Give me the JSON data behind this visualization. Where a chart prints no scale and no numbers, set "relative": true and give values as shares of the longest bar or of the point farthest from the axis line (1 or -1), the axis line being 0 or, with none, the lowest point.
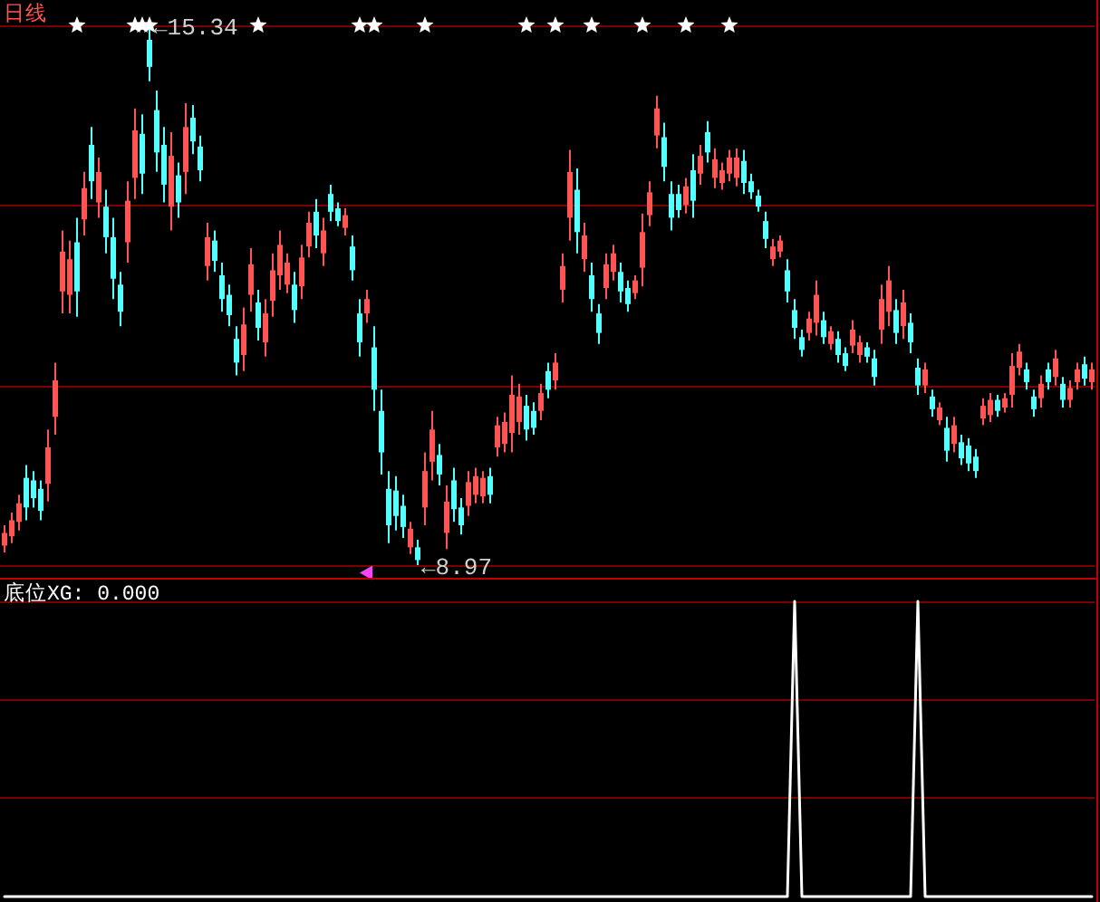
{
  "chart_data": [
    {
      "type": "candlestick",
      "title": "日线",
      "categories": [
        null,
        null,
        null,
        null,
        null,
        null,
        null,
        null,
        null,
        null,
        null,
        null,
        null,
        null,
        null,
        null,
        null,
        null,
        null,
        null,
        null,
        null,
        null,
        null,
        null,
        null,
        null,
        null,
        null,
        null,
        null,
        null,
        null,
        null,
        null,
        null,
        null,
        null,
        null,
        null,
        null,
        null,
        null,
        null,
        null,
        null,
        null,
        null,
        null,
        null,
        null,
        null,
        null,
        null,
        null,
        null,
        null,
        null,
        null,
        null,
        null,
        null,
        null,
        null,
        null,
        null,
        null,
        null,
        null,
        null,
        null,
        null,
        null,
        null,
        null,
        null,
        null,
        null,
        null,
        null,
        null,
        null,
        null,
        null,
        null,
        null,
        null,
        null,
        null,
        null,
        null,
        null,
        null,
        null,
        null,
        null,
        null,
        null,
        null,
        null,
        null,
        null,
        null,
        null,
        null,
        null,
        null,
        null,
        null,
        null,
        null,
        null,
        null,
        null,
        null,
        null,
        null,
        null,
        null,
        null,
        null,
        null,
        null,
        null,
        null,
        null,
        null,
        null,
        null,
        null,
        null,
        null,
        null,
        null,
        null,
        null,
        null,
        null,
        null,
        null,
        null,
        null,
        null,
        null,
        null,
        null,
        null,
        null,
        null,
        null,
        null
      ],
      "ohlc": [
        [
          9.2,
          9.44,
          9.12,
          9.35
        ],
        [
          9.31,
          9.59,
          9.23,
          9.5
        ],
        [
          9.48,
          9.8,
          9.38,
          9.7
        ],
        [
          10.0,
          10.15,
          9.5,
          9.65
        ],
        [
          9.97,
          10.08,
          9.65,
          9.76
        ],
        [
          9.87,
          9.97,
          9.5,
          9.61
        ],
        [
          9.93,
          10.57,
          9.72,
          10.36
        ],
        [
          10.72,
          11.36,
          10.51,
          11.15
        ],
        [
          12.2,
          12.92,
          11.94,
          12.67
        ],
        [
          12.16,
          12.8,
          11.94,
          12.58
        ],
        [
          12.78,
          13.07,
          11.9,
          12.2
        ],
        [
          13.05,
          13.61,
          12.86,
          13.42
        ],
        [
          13.93,
          14.14,
          13.29,
          13.5
        ],
        [
          13.25,
          13.78,
          13.07,
          13.61
        ],
        [
          13.2,
          13.4,
          12.65,
          12.84
        ],
        [
          12.84,
          13.07,
          12.11,
          12.35
        ],
        [
          12.28,
          12.43,
          11.79,
          11.96
        ],
        [
          12.78,
          13.5,
          12.54,
          13.27
        ],
        [
          13.54,
          14.36,
          13.29,
          14.1
        ],
        [
          14.06,
          14.29,
          13.35,
          13.59
        ],
        [
          15.17,
          15.34,
          14.68,
          14.85
        ],
        [
          14.34,
          14.57,
          13.61,
          13.84
        ],
        [
          13.93,
          14.14,
          13.25,
          13.46
        ],
        [
          13.2,
          14.08,
          12.92,
          13.8
        ],
        [
          13.57,
          13.72,
          13.07,
          13.25
        ],
        [
          13.61,
          14.42,
          13.35,
          14.14
        ],
        [
          14.25,
          14.4,
          13.82,
          13.97
        ],
        [
          13.91,
          14.04,
          13.5,
          13.63
        ],
        [
          12.5,
          13.01,
          12.33,
          12.84
        ],
        [
          12.8,
          12.92,
          12.43,
          12.56
        ],
        [
          12.39,
          12.54,
          11.96,
          12.11
        ],
        [
          12.16,
          12.28,
          11.79,
          11.92
        ],
        [
          11.64,
          11.79,
          11.21,
          11.36
        ],
        [
          11.45,
          12.01,
          11.26,
          11.81
        ],
        [
          12.16,
          12.71,
          11.96,
          12.52
        ],
        [
          12.07,
          12.22,
          11.62,
          11.77
        ],
        [
          11.6,
          12.11,
          11.43,
          11.94
        ],
        [
          12.09,
          12.65,
          11.9,
          12.45
        ],
        [
          12.39,
          12.92,
          12.22,
          12.75
        ],
        [
          12.28,
          12.65,
          12.18,
          12.54
        ],
        [
          12.28,
          12.43,
          11.83,
          11.98
        ],
        [
          12.26,
          12.75,
          12.11,
          12.6
        ],
        [
          12.73,
          13.14,
          12.6,
          13.01
        ],
        [
          13.14,
          13.29,
          12.71,
          12.86
        ],
        [
          12.65,
          13.07,
          12.5,
          12.92
        ],
        [
          13.35,
          13.46,
          13.03,
          13.14
        ],
        [
          13.18,
          13.25,
          12.97,
          13.03
        ],
        [
          12.95,
          13.18,
          12.86,
          13.1
        ],
        [
          12.73,
          12.86,
          12.33,
          12.45
        ],
        [
          11.94,
          12.11,
          11.43,
          11.6
        ],
        [
          11.94,
          12.22,
          11.83,
          12.11
        ],
        [
          11.54,
          11.79,
          10.79,
          11.04
        ],
        [
          10.79,
          11.04,
          10.04,
          10.3
        ],
        [
          9.87,
          10.08,
          9.23,
          9.44
        ],
        [
          9.85,
          10.02,
          9.38,
          9.55
        ],
        [
          9.67,
          9.8,
          9.29,
          9.42
        ],
        [
          9.18,
          9.48,
          9.1,
          9.4
        ],
        [
          9.18,
          9.27,
          8.97,
          9.03
        ],
        [
          9.65,
          10.3,
          9.44,
          10.08
        ],
        [
          10.19,
          10.79,
          9.97,
          10.57
        ],
        [
          10.27,
          10.4,
          9.91,
          10.04
        ],
        [
          9.35,
          9.91,
          9.16,
          9.72
        ],
        [
          9.97,
          10.12,
          9.48,
          9.63
        ],
        [
          9.65,
          9.76,
          9.33,
          9.44
        ],
        [
          9.67,
          10.08,
          9.55,
          9.95
        ],
        [
          9.8,
          10.12,
          9.7,
          10.02
        ],
        [
          9.78,
          10.08,
          9.7,
          10.0
        ],
        [
          10.02,
          10.12,
          9.7,
          9.8
        ],
        [
          10.36,
          10.72,
          10.25,
          10.62
        ],
        [
          10.4,
          10.77,
          10.3,
          10.66
        ],
        [
          10.53,
          11.21,
          10.3,
          10.98
        ],
        [
          10.66,
          11.11,
          10.51,
          10.96
        ],
        [
          10.85,
          10.98,
          10.44,
          10.57
        ],
        [
          10.79,
          10.89,
          10.51,
          10.59
        ],
        [
          10.79,
          11.11,
          10.68,
          11.0
        ],
        [
          11.26,
          11.36,
          10.94,
          11.04
        ],
        [
          11.15,
          11.47,
          11.04,
          11.36
        ],
        [
          12.22,
          12.65,
          12.07,
          12.5
        ],
        [
          13.07,
          13.87,
          12.8,
          13.61
        ],
        [
          13.4,
          13.65,
          12.65,
          12.9
        ],
        [
          12.58,
          13.01,
          12.43,
          12.86
        ],
        [
          12.39,
          12.54,
          11.96,
          12.11
        ],
        [
          11.94,
          12.05,
          11.58,
          11.71
        ],
        [
          12.24,
          12.65,
          12.11,
          12.52
        ],
        [
          12.43,
          12.75,
          12.33,
          12.65
        ],
        [
          12.43,
          12.54,
          12.07,
          12.2
        ],
        [
          12.24,
          12.33,
          11.96,
          12.05
        ],
        [
          12.18,
          12.39,
          12.11,
          12.33
        ],
        [
          12.48,
          13.12,
          12.26,
          12.9
        ],
        [
          13.1,
          13.5,
          12.97,
          13.37
        ],
        [
          14.04,
          14.51,
          13.89,
          14.36
        ],
        [
          14.02,
          14.19,
          13.5,
          13.67
        ],
        [
          13.35,
          13.5,
          12.92,
          13.07
        ],
        [
          13.35,
          13.46,
          13.07,
          13.16
        ],
        [
          13.22,
          13.54,
          13.12,
          13.44
        ],
        [
          13.63,
          13.82,
          13.07,
          13.27
        ],
        [
          13.59,
          13.93,
          13.46,
          13.8
        ],
        [
          14.08,
          14.21,
          13.72,
          13.84
        ],
        [
          13.54,
          13.89,
          13.42,
          13.76
        ],
        [
          13.48,
          13.72,
          13.4,
          13.63
        ],
        [
          13.59,
          13.87,
          13.5,
          13.78
        ],
        [
          13.54,
          13.89,
          13.44,
          13.78
        ],
        [
          13.74,
          13.87,
          13.35,
          13.48
        ],
        [
          13.5,
          13.59,
          13.29,
          13.37
        ],
        [
          13.33,
          13.4,
          13.14,
          13.2
        ],
        [
          13.03,
          13.14,
          12.71,
          12.82
        ],
        [
          12.58,
          12.82,
          12.5,
          12.73
        ],
        [
          12.67,
          12.86,
          12.6,
          12.8
        ],
        [
          12.45,
          12.58,
          12.07,
          12.2
        ],
        [
          11.98,
          12.11,
          11.64,
          11.77
        ],
        [
          11.66,
          11.75,
          11.43,
          11.51
        ],
        [
          11.71,
          11.96,
          11.62,
          11.88
        ],
        [
          11.83,
          12.33,
          11.68,
          12.16
        ],
        [
          11.86,
          11.96,
          11.58,
          11.66
        ],
        [
          11.58,
          11.79,
          11.51,
          11.73
        ],
        [
          11.64,
          11.73,
          11.36,
          11.45
        ],
        [
          11.47,
          11.54,
          11.26,
          11.32
        ],
        [
          11.56,
          11.86,
          11.47,
          11.75
        ],
        [
          11.45,
          11.68,
          11.36,
          11.6
        ],
        [
          11.54,
          11.6,
          11.36,
          11.43
        ],
        [
          11.41,
          11.51,
          11.09,
          11.19
        ],
        [
          11.75,
          12.28,
          11.58,
          12.11
        ],
        [
          11.96,
          12.5,
          11.79,
          12.33
        ],
        [
          11.98,
          12.11,
          11.58,
          11.71
        ],
        [
          11.79,
          12.22,
          11.64,
          12.07
        ],
        [
          11.83,
          11.94,
          11.47,
          11.6
        ],
        [
          11.3,
          11.41,
          10.98,
          11.09
        ],
        [
          11.09,
          11.36,
          11.0,
          11.28
        ],
        [
          10.96,
          11.04,
          10.72,
          10.81
        ],
        [
          10.68,
          10.89,
          10.62,
          10.83
        ],
        [
          10.59,
          10.72,
          10.19,
          10.32
        ],
        [
          10.4,
          10.72,
          10.3,
          10.62
        ],
        [
          10.42,
          10.51,
          10.15,
          10.23
        ],
        [
          10.38,
          10.47,
          10.08,
          10.17
        ],
        [
          10.25,
          10.34,
          10.0,
          10.08
        ],
        [
          10.7,
          10.94,
          10.62,
          10.85
        ],
        [
          10.74,
          11.0,
          10.66,
          10.92
        ],
        [
          10.92,
          10.98,
          10.72,
          10.79
        ],
        [
          10.83,
          11.0,
          10.77,
          10.94
        ],
        [
          10.98,
          11.47,
          10.83,
          11.32
        ],
        [
          11.3,
          11.58,
          11.21,
          11.49
        ],
        [
          11.28,
          11.36,
          11.04,
          11.13
        ],
        [
          10.96,
          11.04,
          10.72,
          10.81
        ],
        [
          10.94,
          11.21,
          10.83,
          11.11
        ],
        [
          11.28,
          11.36,
          11.04,
          11.13
        ],
        [
          11.19,
          11.51,
          11.09,
          11.41
        ],
        [
          11.11,
          11.19,
          10.83,
          10.92
        ],
        [
          10.92,
          11.15,
          10.83,
          11.06
        ],
        [
          11.13,
          11.36,
          11.04,
          11.28
        ],
        [
          11.34,
          11.43,
          11.09,
          11.17
        ],
        [
          11.13,
          11.36,
          11.04,
          11.28
        ]
      ],
      "colors": [
        "#ff5454",
        "#ff5454",
        "#ff5454",
        "#54ffff",
        "#54ffff",
        "#54ffff",
        "#ff5454",
        "#ff5454",
        "#ff5454",
        "#ff5454",
        "#54ffff",
        "#ff5454",
        "#54ffff",
        "#ff5454",
        "#54ffff",
        "#54ffff",
        "#54ffff",
        "#ff5454",
        "#ff5454",
        "#54ffff",
        "#54ffff",
        "#54ffff",
        "#54ffff",
        "#ff5454",
        "#54ffff",
        "#ff5454",
        "#54ffff",
        "#54ffff",
        "#ff5454",
        "#54ffff",
        "#54ffff",
        "#54ffff",
        "#54ffff",
        "#ff5454",
        "#ff5454",
        "#54ffff",
        "#ff5454",
        "#ff5454",
        "#ff5454",
        "#ff5454",
        "#54ffff",
        "#ff5454",
        "#ff5454",
        "#54ffff",
        "#ff5454",
        "#54ffff",
        "#54ffff",
        "#ff5454",
        "#54ffff",
        "#54ffff",
        "#ff5454",
        "#54ffff",
        "#54ffff",
        "#54ffff",
        "#54ffff",
        "#54ffff",
        "#ff5454",
        "#54ffff",
        "#ff5454",
        "#ff5454",
        "#54ffff",
        "#ff5454",
        "#54ffff",
        "#54ffff",
        "#ff5454",
        "#ff5454",
        "#ff5454",
        "#54ffff",
        "#ff5454",
        "#ff5454",
        "#ff5454",
        "#ff5454",
        "#54ffff",
        "#54ffff",
        "#ff5454",
        "#54ffff",
        "#ff5454",
        "#ff5454",
        "#ff5454",
        "#54ffff",
        "#ff5454",
        "#54ffff",
        "#54ffff",
        "#ff5454",
        "#ff5454",
        "#54ffff",
        "#54ffff",
        "#ff5454",
        "#ff5454",
        "#ff5454",
        "#ff5454",
        "#54ffff",
        "#54ffff",
        "#54ffff",
        "#ff5454",
        "#54ffff",
        "#ff5454",
        "#54ffff",
        "#ff5454",
        "#ff5454",
        "#ff5454",
        "#ff5454",
        "#54ffff",
        "#54ffff",
        "#54ffff",
        "#54ffff",
        "#ff5454",
        "#ff5454",
        "#54ffff",
        "#54ffff",
        "#54ffff",
        "#ff5454",
        "#ff5454",
        "#54ffff",
        "#ff5454",
        "#54ffff",
        "#54ffff",
        "#ff5454",
        "#ff5454",
        "#54ffff",
        "#54ffff",
        "#ff5454",
        "#ff5454",
        "#54ffff",
        "#ff5454",
        "#54ffff",
        "#54ffff",
        "#ff5454",
        "#54ffff",
        "#ff5454",
        "#54ffff",
        "#ff5454",
        "#54ffff",
        "#54ffff",
        "#54ffff",
        "#ff5454",
        "#ff5454",
        "#54ffff",
        "#ff5454",
        "#ff5454",
        "#ff5454",
        "#54ffff",
        "#54ffff",
        "#ff5454",
        "#54ffff",
        "#ff5454",
        "#54ffff",
        "#ff5454",
        "#ff5454",
        "#54ffff",
        "#ff5454"
      ],
      "series": [
        {
          "type": "scatter",
          "marker": "star",
          "color": "#ffffff",
          "values": [
            null,
            null,
            null,
            null,
            null,
            null,
            null,
            null,
            null,
            null,
            15.34,
            null,
            null,
            null,
            null,
            null,
            null,
            null,
            15.34,
            15.34,
            15.34,
            null,
            null,
            null,
            null,
            null,
            null,
            null,
            null,
            null,
            null,
            null,
            null,
            null,
            null,
            15.34,
            null,
            null,
            null,
            null,
            null,
            null,
            null,
            null,
            null,
            null,
            null,
            null,
            null,
            15.34,
            null,
            15.34,
            null,
            null,
            null,
            null,
            null,
            null,
            15.34,
            null,
            null,
            null,
            null,
            null,
            null,
            null,
            null,
            null,
            null,
            null,
            null,
            null,
            15.34,
            null,
            null,
            null,
            15.34,
            null,
            null,
            null,
            null,
            15.34,
            null,
            null,
            null,
            null,
            null,
            null,
            15.34,
            null,
            null,
            null,
            null,
            null,
            15.34,
            null,
            null,
            null,
            null,
            null,
            15.34,
            null,
            null,
            null,
            null,
            null,
            null,
            null,
            null,
            null,
            null,
            null,
            null,
            null,
            null,
            null,
            null,
            null,
            null,
            null,
            null,
            null,
            null,
            null,
            null,
            null,
            null,
            null,
            null,
            null,
            null,
            null,
            null,
            null,
            null,
            null,
            null,
            null,
            null,
            null,
            null,
            null,
            null,
            null,
            null,
            null,
            null,
            null,
            null,
            null,
            null
          ]
        },
        {
          "type": "scatter",
          "marker": "triangle",
          "color": "#ff40ff",
          "values": [
            null,
            null,
            null,
            null,
            null,
            null,
            null,
            null,
            null,
            null,
            null,
            null,
            null,
            null,
            null,
            null,
            null,
            null,
            null,
            null,
            null,
            null,
            null,
            null,
            null,
            null,
            null,
            null,
            null,
            null,
            null,
            null,
            null,
            null,
            null,
            null,
            null,
            null,
            null,
            null,
            null,
            null,
            null,
            null,
            null,
            null,
            null,
            null,
            null,
            null,
            8.88,
            null,
            null,
            null,
            null,
            null,
            null,
            null,
            null,
            null,
            null,
            null,
            null,
            null,
            null,
            null,
            null,
            null,
            null,
            null,
            null,
            null,
            null,
            null,
            null,
            null,
            null,
            null,
            null,
            null,
            null,
            null,
            null,
            null,
            null,
            null,
            null,
            null,
            null,
            null,
            null,
            null,
            null,
            null,
            null,
            null,
            null,
            null,
            null,
            null,
            null,
            null,
            null,
            null,
            null,
            null,
            null,
            null,
            null,
            null,
            null,
            null,
            null,
            null,
            null,
            null,
            null,
            null,
            null,
            null,
            null,
            null,
            null,
            null,
            null,
            null,
            null,
            null,
            null,
            null,
            null,
            null,
            null,
            null,
            null,
            null,
            null,
            null,
            null,
            null,
            null,
            null,
            null,
            null,
            null,
            null,
            null,
            null,
            null,
            null,
            null
          ]
        }
      ],
      "ref_lines": [
        {
          "axis": "y",
          "value": 15.34,
          "color": "#7a0000"
        },
        {
          "axis": "y",
          "value": 13.22,
          "color": "#7a0000"
        },
        {
          "axis": "y",
          "value": 11.09,
          "color": "#7a0000"
        },
        {
          "axis": "y",
          "value": 8.97,
          "color": "#7a0000"
        }
      ],
      "annotations": [
        "←15.34",
        "←8.97"
      ]
    },
    {
      "type": "line",
      "title": "底位XG: 0.000",
      "relative": true,
      "color": "#ffffff",
      "categories": [
        null,
        null,
        null,
        null,
        null,
        null,
        null,
        null,
        null,
        null,
        null,
        null,
        null,
        null,
        null,
        null,
        null,
        null,
        null,
        null,
        null,
        null,
        null,
        null,
        null,
        null,
        null,
        null,
        null,
        null,
        null,
        null,
        null,
        null,
        null,
        null,
        null,
        null,
        null,
        null,
        null,
        null,
        null,
        null,
        null,
        null,
        null,
        null,
        null,
        null,
        null,
        null,
        null,
        null,
        null,
        null,
        null,
        null,
        null,
        null,
        null,
        null,
        null,
        null,
        null,
        null,
        null,
        null,
        null,
        null,
        null,
        null,
        null,
        null,
        null,
        null,
        null,
        null,
        null,
        null,
        null,
        null,
        null,
        null,
        null,
        null,
        null,
        null,
        null,
        null,
        null,
        null,
        null,
        null,
        null,
        null,
        null,
        null,
        null,
        null,
        null,
        null,
        null,
        null,
        null,
        null,
        null,
        null,
        null,
        null,
        null,
        null,
        null,
        null,
        null,
        null,
        null,
        null,
        null,
        null,
        null,
        null,
        null,
        null,
        null,
        null,
        null,
        null,
        null,
        null,
        null,
        null,
        null,
        null,
        null,
        null,
        null,
        null,
        null,
        null,
        null,
        null,
        null,
        null,
        null,
        null,
        null,
        null,
        null,
        null,
        null
      ],
      "values": [
        0,
        0,
        0,
        0,
        0,
        0,
        0,
        0,
        0,
        0,
        0,
        0,
        0,
        0,
        0,
        0,
        0,
        0,
        0,
        0,
        0,
        0,
        0,
        0,
        0,
        0,
        0,
        0,
        0,
        0,
        0,
        0,
        0,
        0,
        0,
        0,
        0,
        0,
        0,
        0,
        0,
        0,
        0,
        0,
        0,
        0,
        0,
        0,
        0,
        0,
        0,
        0,
        0,
        0,
        0,
        0,
        0,
        0,
        0,
        0,
        0,
        0,
        0,
        0,
        0,
        0,
        0,
        0,
        0,
        0,
        0,
        0,
        0,
        0,
        0,
        0,
        0,
        0,
        0,
        0,
        0,
        0,
        0,
        0,
        0,
        0,
        0,
        0,
        0,
        0,
        0,
        0,
        0,
        0,
        0,
        0,
        0,
        0,
        0,
        0,
        0,
        0,
        0,
        0,
        0,
        0,
        0,
        0,
        0,
        1,
        0,
        0,
        0,
        0,
        0,
        0,
        0,
        0,
        0,
        0,
        0,
        0,
        0,
        0,
        0,
        0,
        1,
        0,
        0,
        0,
        0,
        0,
        0,
        0,
        0,
        0,
        0,
        0,
        0,
        0,
        0,
        0,
        0,
        0,
        0,
        0,
        0,
        0,
        0,
        0,
        0
      ],
      "ref_lines": [
        {
          "axis": "y",
          "value": 1,
          "color": "#7a0000"
        },
        {
          "axis": "y",
          "value": 0.67,
          "color": "#7a0000"
        },
        {
          "axis": "y",
          "value": 0.34,
          "color": "#7a0000"
        }
      ]
    }
  ]
}
